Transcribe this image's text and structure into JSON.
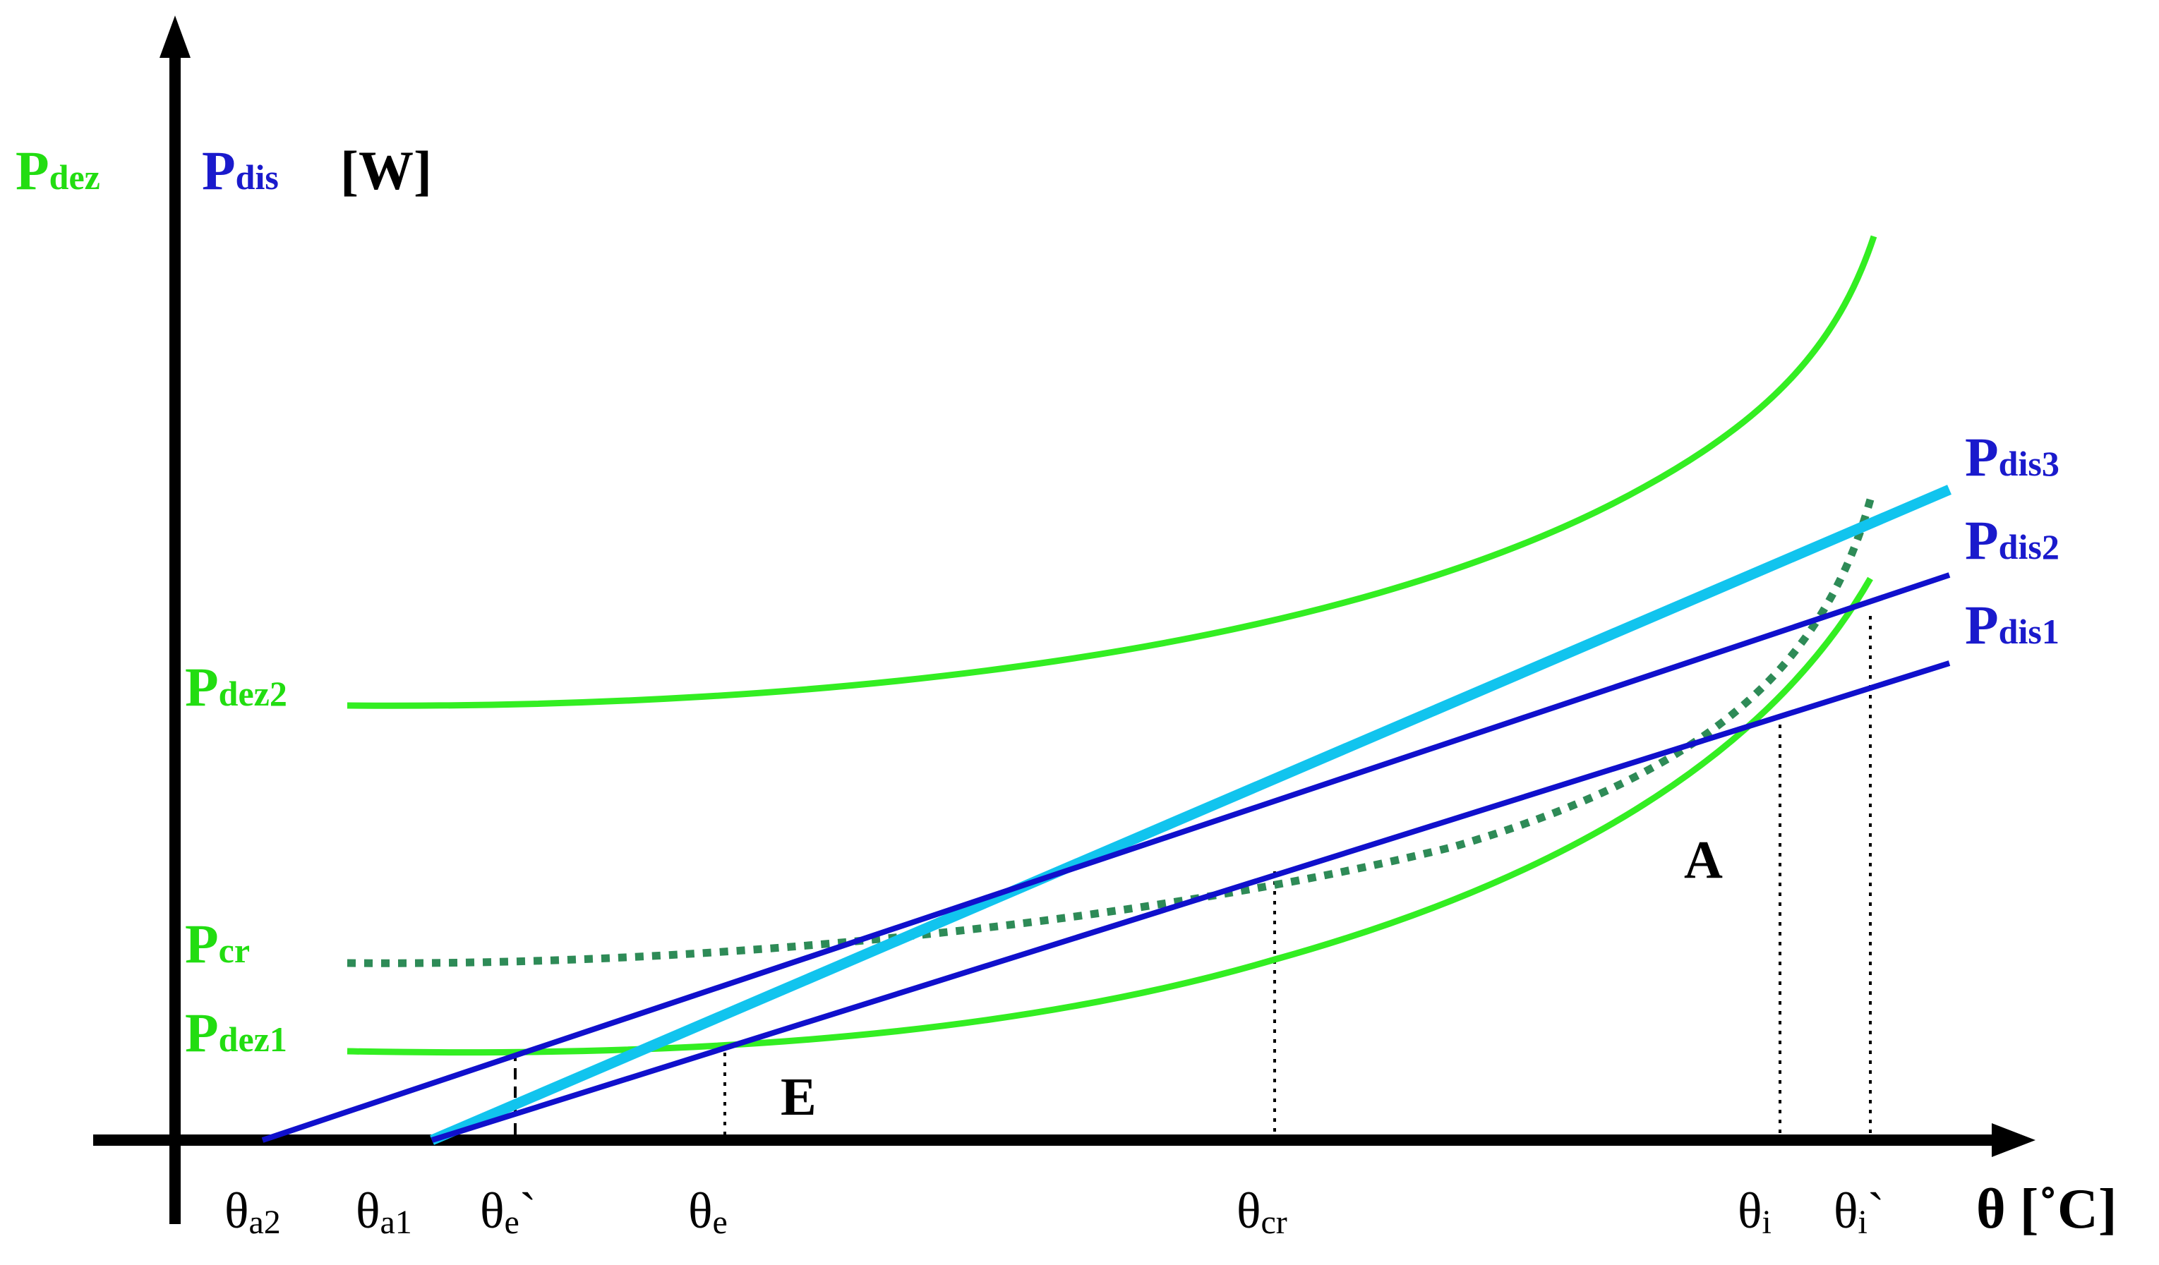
{
  "axes": {
    "y_label": {
      "dez": {
        "main": "P",
        "sub": "dez"
      },
      "dis": {
        "main": "P",
        "sub": "dis"
      },
      "unit": "[W]"
    },
    "x_label": {
      "main": "θ",
      "unit": "[˚C]"
    }
  },
  "x_ticks": [
    {
      "main": "θ",
      "sub": "a2",
      "suffix": ""
    },
    {
      "main": "θ",
      "sub": "a1",
      "suffix": ""
    },
    {
      "main": "θ",
      "sub": "e",
      "suffix": "`"
    },
    {
      "main": "θ",
      "sub": "e",
      "suffix": ""
    },
    {
      "main": "θ",
      "sub": "cr",
      "suffix": ""
    },
    {
      "main": "θ",
      "sub": "i",
      "suffix": ""
    },
    {
      "main": "θ",
      "sub": "i",
      "suffix": "`"
    }
  ],
  "curve_labels": {
    "pdez2": {
      "main": "P",
      "sub": "dez2"
    },
    "pcr": {
      "main": "P",
      "sub": "cr"
    },
    "pdez1": {
      "main": "P",
      "sub": "dez1"
    },
    "pdis3": {
      "main": "P",
      "sub": "dis3"
    },
    "pdis2": {
      "main": "P",
      "sub": "dis2"
    },
    "pdis1": {
      "main": "P",
      "sub": "dis1"
    }
  },
  "points": {
    "E": "E",
    "A": "A"
  },
  "colors": {
    "axis": "#000000",
    "dez": "#33ee22",
    "dez_dotted": "#2e8b57",
    "dis": "#1010cc",
    "dis3": "#11c4ee",
    "label_dez": "#22dd11",
    "label_dis": "#1a1acc"
  }
}
